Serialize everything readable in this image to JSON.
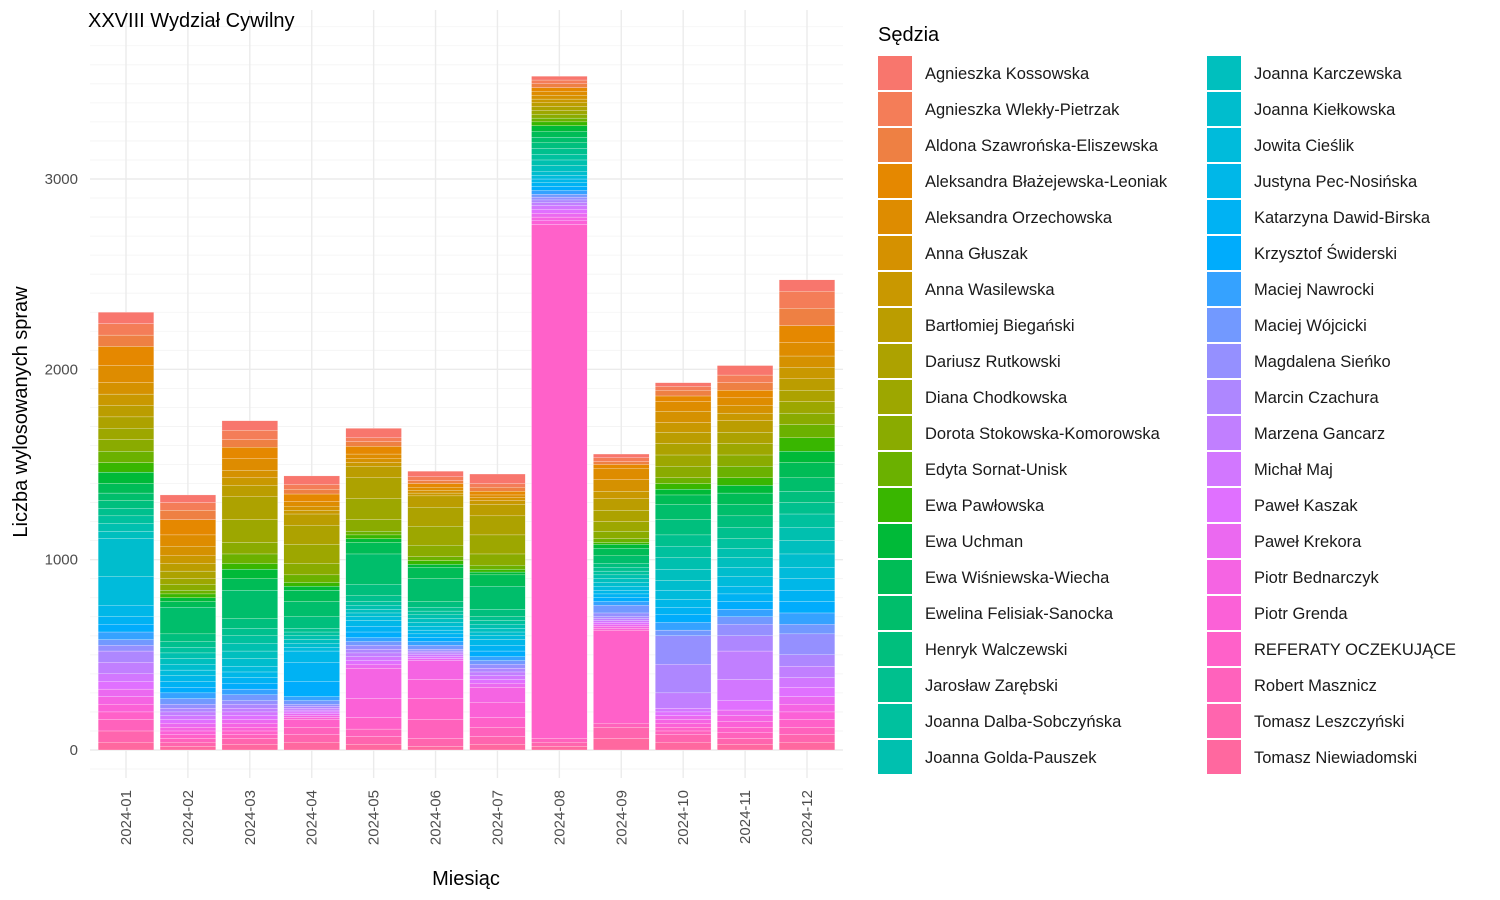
{
  "chart_data": {
    "type": "bar",
    "stacked": true,
    "title": "XXVIII Wydział Cywilny",
    "xlabel": "Miesiąc",
    "ylabel": "Liczba wylosowanych spraw",
    "ylim": [
      0,
      3800
    ],
    "yticks": [
      "0",
      "1000",
      "2000",
      "3000"
    ],
    "grid": true,
    "legend_position": "right",
    "legend_title": "Sędzia",
    "categories": [
      "2024-01",
      "2024-02",
      "2024-03",
      "2024-04",
      "2024-05",
      "2024-06",
      "2024-07",
      "2024-08",
      "2024-09",
      "2024-10",
      "2024-11",
      "2024-12"
    ],
    "series": [
      {
        "name": "Agnieszka Kossowska",
        "color": "#F8766D",
        "values": [
          60,
          40,
          50,
          45,
          50,
          30,
          50,
          20,
          20,
          20,
          50,
          60
        ]
      },
      {
        "name": "Agnieszka Wlekły-Pietrzak",
        "color": "#F47D58",
        "values": [
          60,
          40,
          50,
          25,
          20,
          20,
          20,
          20,
          20,
          20,
          40,
          90
        ]
      },
      {
        "name": "Aldona Szawrońska-Eliszewska",
        "color": "#EE8043",
        "values": [
          60,
          50,
          40,
          25,
          25,
          15,
          20,
          20,
          15,
          30,
          40,
          90
        ]
      },
      {
        "name": "Aleksandra Błażejewska-Leoniak",
        "color": "#E58800",
        "values": [
          100,
          80,
          60,
          40,
          40,
          20,
          20,
          20,
          20,
          30,
          40,
          90
        ]
      },
      {
        "name": "Aleksandra Orzechowska",
        "color": "#DE8C00",
        "values": [
          90,
          60,
          60,
          25,
          25,
          15,
          15,
          20,
          60,
          50,
          40,
          70
        ]
      },
      {
        "name": "Anna Głuszak",
        "color": "#D59100",
        "values": [
          60,
          50,
          40,
          20,
          20,
          15,
          15,
          20,
          60,
          60,
          40,
          60
        ]
      },
      {
        "name": "Anna Wasilewska",
        "color": "#C99800",
        "values": [
          60,
          40,
          40,
          20,
          20,
          15,
          20,
          20,
          40,
          50,
          40,
          60
        ]
      },
      {
        "name": "Bartłomiej Biegański",
        "color": "#BB9D00",
        "values": [
          60,
          40,
          60,
          60,
          60,
          60,
          60,
          20,
          60,
          60,
          60,
          60
        ]
      },
      {
        "name": "Dariusz Rutkowski",
        "color": "#ADA200",
        "values": [
          60,
          40,
          120,
          100,
          110,
          100,
          100,
          20,
          60,
          60,
          60,
          60
        ]
      },
      {
        "name": "Diana Chodkowska",
        "color": "#9DA700",
        "values": [
          60,
          30,
          120,
          100,
          110,
          100,
          100,
          20,
          50,
          60,
          60,
          60
        ]
      },
      {
        "name": "Dorota Stokowska-Komorowska",
        "color": "#8AAB00",
        "values": [
          60,
          30,
          60,
          60,
          60,
          60,
          60,
          20,
          40,
          60,
          60,
          60
        ]
      },
      {
        "name": "Edyta Sornat-Unisk",
        "color": "#6BB100",
        "values": [
          60,
          20,
          50,
          40,
          20,
          20,
          20,
          20,
          20,
          30,
          60,
          70
        ]
      },
      {
        "name": "Ewa Pawłowska",
        "color": "#39B600",
        "values": [
          50,
          20,
          30,
          20,
          20,
          20,
          15,
          20,
          10,
          30,
          40,
          70
        ]
      },
      {
        "name": "Ewa Uchman",
        "color": "#00BA38",
        "values": [
          60,
          20,
          50,
          20,
          20,
          15,
          15,
          30,
          20,
          30,
          40,
          60
        ]
      },
      {
        "name": "Ewa Wiśniewska-Wiecha",
        "color": "#00BC56",
        "values": [
          50,
          30,
          60,
          60,
          60,
          60,
          60,
          30,
          40,
          50,
          60,
          80
        ]
      },
      {
        "name": "Ewelina Felisiak-Sanocka",
        "color": "#00BE6B",
        "values": [
          40,
          140,
          150,
          80,
          160,
          120,
          120,
          30,
          40,
          80,
          60,
          70
        ]
      },
      {
        "name": "Henryk Walczewski",
        "color": "#00BF7D",
        "values": [
          40,
          40,
          50,
          60,
          60,
          30,
          40,
          30,
          20,
          80,
          60,
          60
        ]
      },
      {
        "name": "Jarosław Zarębski",
        "color": "#00C08E",
        "values": [
          40,
          30,
          40,
          20,
          30,
          20,
          20,
          30,
          20,
          60,
          60,
          60
        ]
      },
      {
        "name": "Joanna Dalba-Sobczyńska",
        "color": "#00C19E",
        "values": [
          40,
          30,
          40,
          20,
          20,
          20,
          20,
          30,
          20,
          60,
          50,
          70
        ]
      },
      {
        "name": "Joanna Golda-Pauszek",
        "color": "#00C0AF",
        "values": [
          40,
          30,
          40,
          20,
          20,
          20,
          20,
          30,
          20,
          60,
          50,
          70
        ]
      },
      {
        "name": "Joanna Karczewska",
        "color": "#00BFBE",
        "values": [
          40,
          30,
          40,
          20,
          20,
          20,
          20,
          30,
          20,
          60,
          50,
          70
        ]
      },
      {
        "name": "Joanna Kiełkowska",
        "color": "#00BDCD",
        "values": [
          200,
          30,
          40,
          20,
          20,
          20,
          20,
          20,
          20,
          50,
          50,
          70
        ]
      },
      {
        "name": "Jowita Cieślik",
        "color": "#00BBDB",
        "values": [
          150,
          30,
          30,
          20,
          20,
          20,
          20,
          20,
          20,
          50,
          50,
          60
        ]
      },
      {
        "name": "Justyna Pec-Nosińska",
        "color": "#00B7E8",
        "values": [
          60,
          30,
          30,
          60,
          30,
          20,
          30,
          20,
          20,
          40,
          40,
          60
        ]
      },
      {
        "name": "Katarzyna Dawid-Birska",
        "color": "#00B2F3",
        "values": [
          40,
          30,
          30,
          100,
          30,
          20,
          30,
          20,
          20,
          40,
          40,
          60
        ]
      },
      {
        "name": "Krzysztof Świderski",
        "color": "#00ACFC",
        "values": [
          40,
          30,
          30,
          80,
          30,
          20,
          30,
          20,
          20,
          40,
          40,
          60
        ]
      },
      {
        "name": "Maciej Nawrocki",
        "color": "#35A2FF",
        "values": [
          40,
          30,
          30,
          20,
          20,
          20,
          20,
          20,
          20,
          40,
          40,
          60
        ]
      },
      {
        "name": "Maciej Wójcicki",
        "color": "#7299FF",
        "values": [
          30,
          30,
          30,
          20,
          20,
          20,
          20,
          15,
          40,
          30,
          40,
          50
        ]
      },
      {
        "name": "Magdalena Sieńko",
        "color": "#9590FF",
        "values": [
          30,
          20,
          20,
          10,
          20,
          10,
          20,
          15,
          20,
          150,
          60,
          110
        ]
      },
      {
        "name": "Marcin Czachura",
        "color": "#AE87FF",
        "values": [
          60,
          20,
          20,
          10,
          20,
          10,
          20,
          15,
          10,
          150,
          80,
          60
        ]
      },
      {
        "name": "Marzena Gancarz",
        "color": "#C17FFF",
        "values": [
          60,
          20,
          20,
          10,
          20,
          10,
          20,
          15,
          10,
          80,
          150,
          60
        ]
      },
      {
        "name": "Michał Maj",
        "color": "#D277FF",
        "values": [
          40,
          20,
          20,
          10,
          20,
          10,
          20,
          20,
          10,
          20,
          110,
          50
        ]
      },
      {
        "name": "Paweł Kaszak",
        "color": "#E070FF",
        "values": [
          40,
          20,
          20,
          10,
          20,
          10,
          20,
          20,
          10,
          20,
          50,
          50
        ]
      },
      {
        "name": "Paweł Krekora",
        "color": "#EB69F0",
        "values": [
          40,
          20,
          20,
          10,
          20,
          10,
          20,
          20,
          10,
          20,
          30,
          40
        ]
      },
      {
        "name": "Piotr Bednarczyk",
        "color": "#F564E3",
        "values": [
          40,
          20,
          20,
          10,
          160,
          100,
          80,
          20,
          10,
          20,
          30,
          40
        ]
      },
      {
        "name": "Piotr Grenda",
        "color": "#FB61D7",
        "values": [
          40,
          20,
          20,
          10,
          100,
          100,
          80,
          20,
          10,
          20,
          30,
          40
        ]
      },
      {
        "name": "REFERATY OCZEKUJĄCE",
        "color": "#FF61C9",
        "values": [
          40,
          20,
          20,
          40,
          60,
          110,
          50,
          2700,
          490,
          20,
          30,
          40
        ]
      },
      {
        "name": "Robert Masznicz",
        "color": "#FF62BC",
        "values": [
          60,
          20,
          20,
          40,
          40,
          100,
          50,
          20,
          20,
          20,
          30,
          40
        ]
      },
      {
        "name": "Tomasz Leszczyński",
        "color": "#FF65AE",
        "values": [
          60,
          20,
          30,
          40,
          40,
          40,
          40,
          20,
          60,
          40,
          30,
          40
        ]
      },
      {
        "name": "Tomasz Niewiadomski",
        "color": "#FF689F",
        "values": [
          40,
          20,
          30,
          40,
          30,
          20,
          30,
          20,
          60,
          40,
          30,
          40
        ]
      }
    ]
  }
}
